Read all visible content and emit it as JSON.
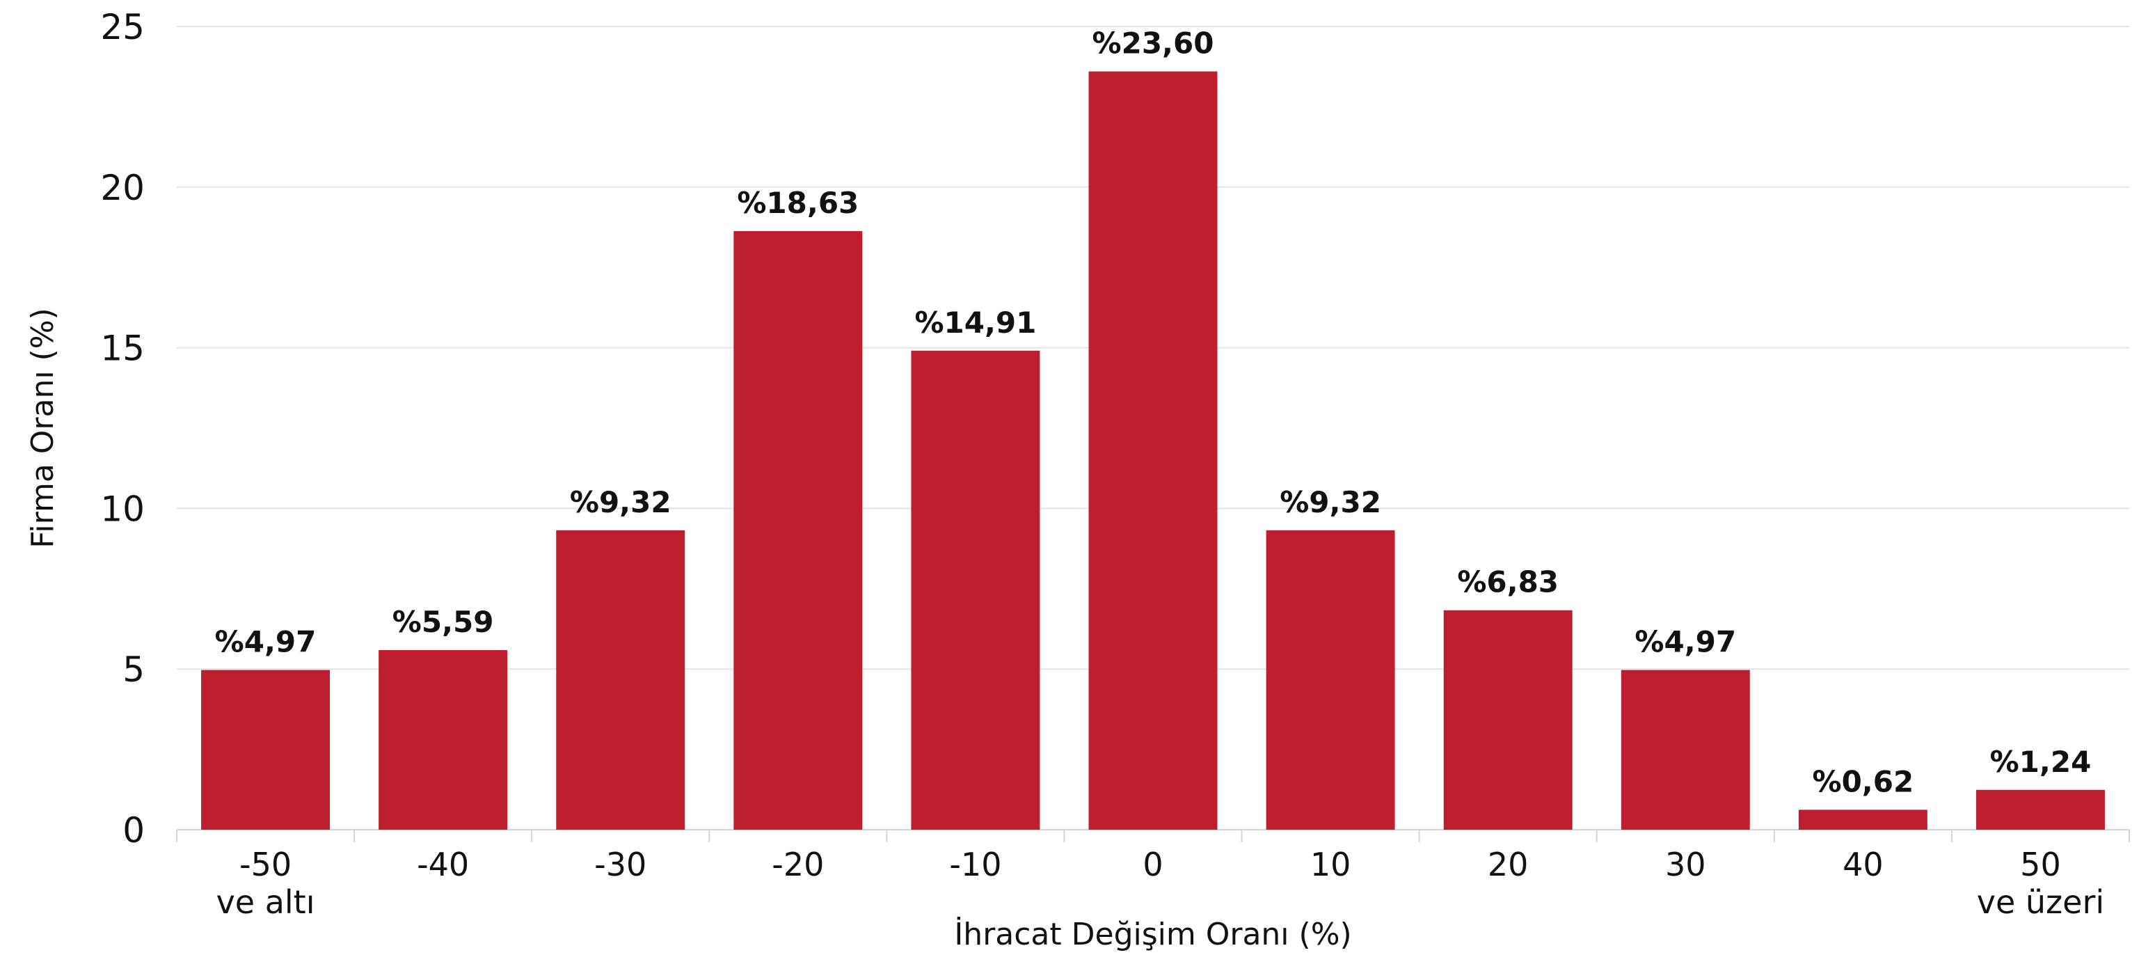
{
  "chart_data": {
    "type": "bar",
    "title": "",
    "xlabel": "İhracat Değişim Oranı (%)",
    "ylabel": "Firma Oranı (%)",
    "ylim": [
      0,
      25
    ],
    "yticks": [
      "0",
      "5",
      "10",
      "15",
      "20",
      "25"
    ],
    "grid": true,
    "categories": [
      [
        "-50",
        "ve altı"
      ],
      [
        "-40"
      ],
      [
        "-30"
      ],
      [
        "-20"
      ],
      [
        "-10"
      ],
      [
        "0"
      ],
      [
        "10"
      ],
      [
        "20"
      ],
      [
        "30"
      ],
      [
        "40"
      ],
      [
        "50",
        "ve üzeri"
      ]
    ],
    "values": [
      4.97,
      5.59,
      9.32,
      18.63,
      14.91,
      23.6,
      9.32,
      6.83,
      4.97,
      0.62,
      1.24
    ],
    "data_labels": [
      "%4,97",
      "%5,59",
      "%9,32",
      "%18,63",
      "%14,91",
      "%23,60",
      "%9,32",
      "%6,83",
      "%4,97",
      "%0,62",
      "%1,24"
    ],
    "bar_color": "#be1e2d",
    "grid_color": "#e3e3e3"
  }
}
